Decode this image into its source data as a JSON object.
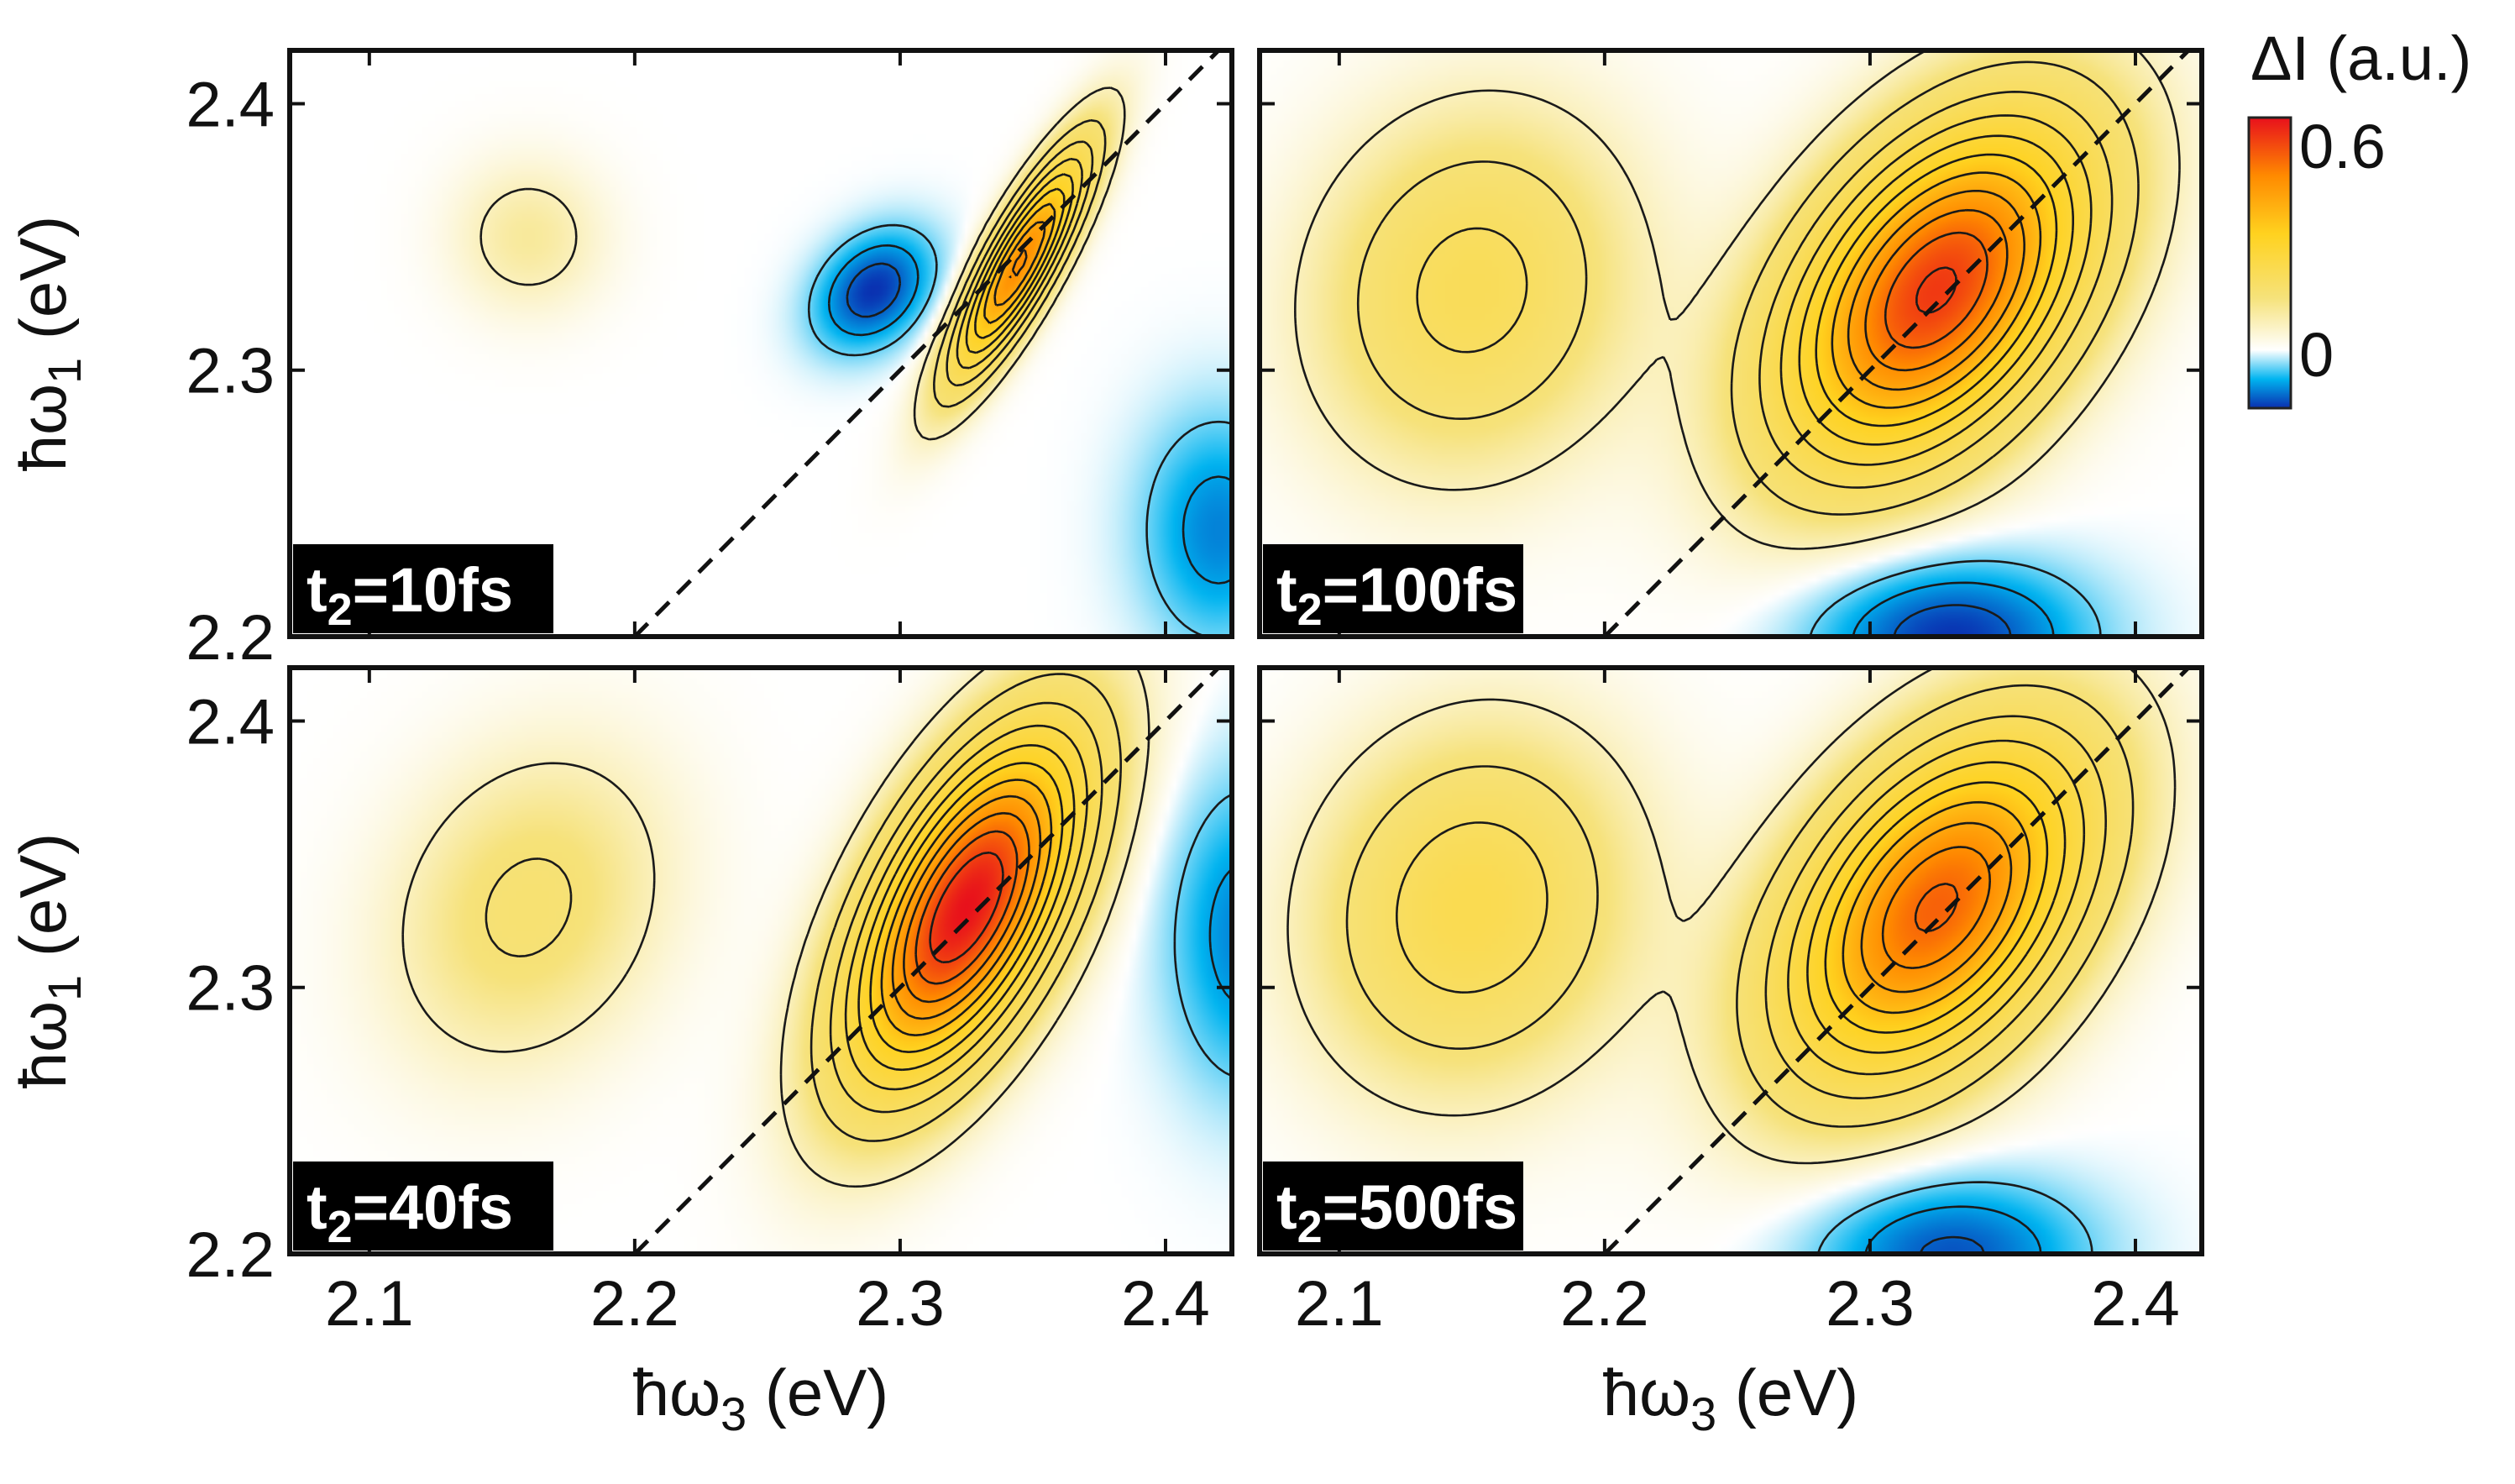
{
  "chart_data": {
    "type": "heatmap",
    "figure_kind": "2D electronic spectra (contour maps)",
    "colorbar": {
      "label": "ΔI (a.u.)",
      "tick_labels": [
        "0.6",
        "0"
      ],
      "range": [
        -0.15,
        0.6
      ],
      "colors": [
        "#0a2fb0",
        "#00b4f0",
        "#ffffff",
        "#f6e27a",
        "#ffd21f",
        "#ff8a00",
        "#e8101c"
      ]
    },
    "axes": {
      "x": {
        "label": "ħω",
        "subscript": "3",
        "unit": " (eV)",
        "range": [
          2.07,
          2.425
        ],
        "ticks": [
          2.1,
          2.2,
          2.3,
          2.4
        ],
        "tick_labels": [
          "2.1",
          "2.2",
          "2.3",
          "2.4"
        ]
      },
      "y": {
        "label": "ħω",
        "subscript": "1",
        "unit": " (eV)",
        "range": [
          2.2,
          2.42
        ],
        "ticks": [
          2.2,
          2.3,
          2.4
        ],
        "tick_labels": [
          "2.2",
          "2.3",
          "2.4"
        ]
      }
    },
    "diagonal_line": {
      "style": "dashed",
      "from": [
        2.2,
        2.2
      ],
      "to": [
        2.42,
        2.42
      ]
    },
    "panels": [
      {
        "label_prefix": "t",
        "label_sub": "2",
        "label_suffix": "=10fs",
        "t2_fs": 10,
        "peaks": [
          {
            "x": 2.345,
            "y": 2.34,
            "amp": 0.45,
            "sx": 0.018,
            "sy": 0.03,
            "rho": 0.85,
            "kind": "positive"
          },
          {
            "x": 2.29,
            "y": 2.33,
            "amp": -0.15,
            "sx": 0.015,
            "sy": 0.015,
            "rho": 0.3,
            "kind": "negative"
          },
          {
            "x": 2.16,
            "y": 2.35,
            "amp": 0.06,
            "sx": 0.02,
            "sy": 0.02,
            "rho": 0.0,
            "kind": "positive"
          },
          {
            "x": 2.42,
            "y": 2.24,
            "amp": -0.1,
            "sx": 0.02,
            "sy": 0.03,
            "rho": 0.0,
            "kind": "negative"
          }
        ]
      },
      {
        "label_prefix": "t",
        "label_sub": "2",
        "label_suffix": "=100fs",
        "t2_fs": 100,
        "peaks": [
          {
            "x": 2.325,
            "y": 2.33,
            "amp": 0.55,
            "sx": 0.04,
            "sy": 0.045,
            "rho": 0.45,
            "kind": "positive"
          },
          {
            "x": 2.15,
            "y": 2.33,
            "amp": 0.16,
            "sx": 0.04,
            "sy": 0.045,
            "rho": 0.1,
            "kind": "positive"
          },
          {
            "x": 2.33,
            "y": 2.2,
            "amp": -0.15,
            "sx": 0.035,
            "sy": 0.02,
            "rho": 0.0,
            "kind": "negative"
          }
        ]
      },
      {
        "label_prefix": "t",
        "label_sub": "2",
        "label_suffix": "=40fs",
        "t2_fs": 40,
        "peaks": [
          {
            "x": 2.325,
            "y": 2.33,
            "amp": 0.6,
            "sx": 0.03,
            "sy": 0.045,
            "rho": 0.6,
            "kind": "positive"
          },
          {
            "x": 2.16,
            "y": 2.33,
            "amp": 0.1,
            "sx": 0.035,
            "sy": 0.04,
            "rho": 0.2,
            "kind": "positive"
          },
          {
            "x": 2.43,
            "y": 2.32,
            "amp": -0.1,
            "sx": 0.02,
            "sy": 0.04,
            "rho": 0.0,
            "kind": "negative"
          }
        ]
      },
      {
        "label_prefix": "t",
        "label_sub": "2",
        "label_suffix": "=500fs",
        "t2_fs": 500,
        "peaks": [
          {
            "x": 2.325,
            "y": 2.33,
            "amp": 0.5,
            "sx": 0.04,
            "sy": 0.045,
            "rho": 0.45,
            "kind": "positive"
          },
          {
            "x": 2.15,
            "y": 2.33,
            "amp": 0.18,
            "sx": 0.04,
            "sy": 0.045,
            "rho": 0.1,
            "kind": "positive"
          },
          {
            "x": 2.33,
            "y": 2.2,
            "amp": -0.13,
            "sx": 0.035,
            "sy": 0.02,
            "rho": 0.0,
            "kind": "negative"
          }
        ]
      }
    ]
  }
}
